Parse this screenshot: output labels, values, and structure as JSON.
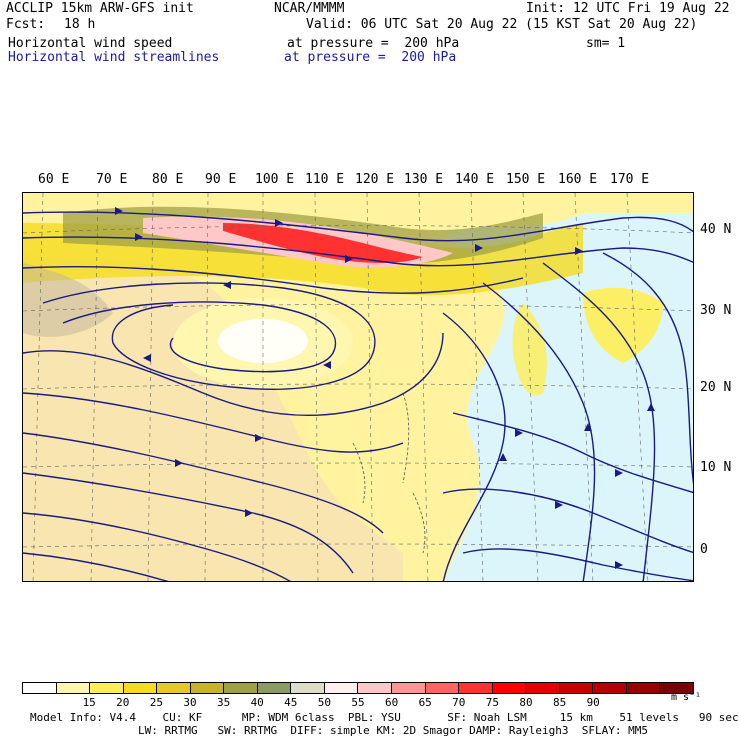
{
  "header": {
    "model": "ACCLIP 15km ARW-GFS init",
    "fcst_label": "Fcst:",
    "fcst_value": "18 h",
    "field1": "Horizontal wind speed",
    "field2": "Horizontal wind streamlines",
    "org": "NCAR/MMMM",
    "valid": "Valid: 06 UTC Sat 20 Aug 22 (15 KST Sat 20 Aug 22)",
    "pressure1": "at pressure =  200 hPa",
    "pressure2": "at pressure =  200 hPa",
    "init": "Init: 12 UTC Fri 19 Aug 22",
    "smoothing": "sm= 1"
  },
  "map": {
    "lon_labels": [
      "60 E",
      "70 E",
      "80 E",
      "90 E",
      "100 E",
      "110 E",
      "120 E",
      "130 E",
      "140 E",
      "150 E",
      "160 E",
      "170 E"
    ],
    "lat_labels": [
      "40 N",
      "30 N",
      "20 N",
      "10 N",
      "0"
    ]
  },
  "colorbar": {
    "colors": [
      "#ffffff",
      "#fff7b0",
      "#ffee55",
      "#f5dc1e",
      "#e6c828",
      "#c8b428",
      "#a0a046",
      "#8c9a64",
      "#dcdcc8",
      "#fff0f0",
      "#ffc8c8",
      "#ff9696",
      "#ff6464",
      "#ff3232",
      "#ff0000",
      "#e60000",
      "#c80000",
      "#b40000",
      "#960000",
      "#780000"
    ],
    "labels": [
      "15",
      "20",
      "25",
      "30",
      "35",
      "40",
      "45",
      "50",
      "55",
      "60",
      "65",
      "70",
      "75",
      "80",
      "85",
      "90"
    ],
    "unit": "m s⁻¹"
  },
  "footer": {
    "line1": "Model Info: V4.4    CU: KF      MP: WDM 6class  PBL: YSU       SF: Noah LSM     15 km    51 levels   90 sec",
    "line2": "LW: RRTMG   SW: RRTMG  DIFF: simple KM: 2D Smagor DAMP: Rayleigh3  SFLAY: MM5"
  },
  "colors": {
    "ocean_calm": "#dcf5fa",
    "land": "#f5dcb9",
    "streamline": "#1a1a82",
    "jet_core": "#ff3232"
  }
}
